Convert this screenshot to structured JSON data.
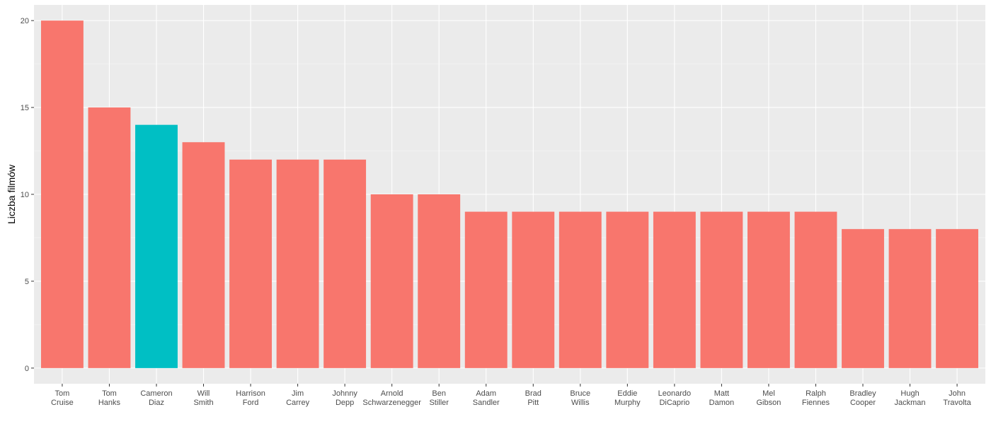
{
  "chart_data": {
    "type": "bar",
    "title": "",
    "xlabel": "",
    "ylabel": "Liczba filmów",
    "ylim": [
      -0.9,
      20.9
    ],
    "yticks": [
      0,
      5,
      10,
      15,
      20
    ],
    "grid": true,
    "categories": [
      [
        "Tom",
        "Cruise"
      ],
      [
        "Tom",
        "Hanks"
      ],
      [
        "Cameron",
        "Diaz"
      ],
      [
        "Will",
        "Smith"
      ],
      [
        "Harrison",
        "Ford"
      ],
      [
        "Jim",
        "Carrey"
      ],
      [
        "Johnny",
        "Depp"
      ],
      [
        "Arnold",
        "Schwarzenegger"
      ],
      [
        "Ben",
        "Stiller"
      ],
      [
        "Adam",
        "Sandler"
      ],
      [
        "Brad",
        "Pitt"
      ],
      [
        "Bruce",
        "Willis"
      ],
      [
        "Eddie",
        "Murphy"
      ],
      [
        "Leonardo",
        "DiCaprio"
      ],
      [
        "Matt",
        "Damon"
      ],
      [
        "Mel",
        "Gibson"
      ],
      [
        "Ralph",
        "Fiennes"
      ],
      [
        "Bradley",
        "Cooper"
      ],
      [
        "Hugh",
        "Jackman"
      ],
      [
        "John",
        "Travolta"
      ]
    ],
    "values": [
      20,
      15,
      14,
      13,
      12,
      12,
      12,
      10,
      10,
      9,
      9,
      9,
      9,
      9,
      9,
      9,
      9,
      8,
      8,
      8
    ],
    "highlighted": [
      false,
      false,
      true,
      false,
      false,
      false,
      false,
      false,
      false,
      false,
      false,
      false,
      false,
      false,
      false,
      false,
      false,
      false,
      false,
      false
    ],
    "colors": {
      "default": "#F8766D",
      "highlight": "#00BFC4",
      "panel": "#EBEBEB",
      "grid_major": "#FFFFFF",
      "grid_minor": "#F5F5F5",
      "tick": "#333333"
    }
  }
}
